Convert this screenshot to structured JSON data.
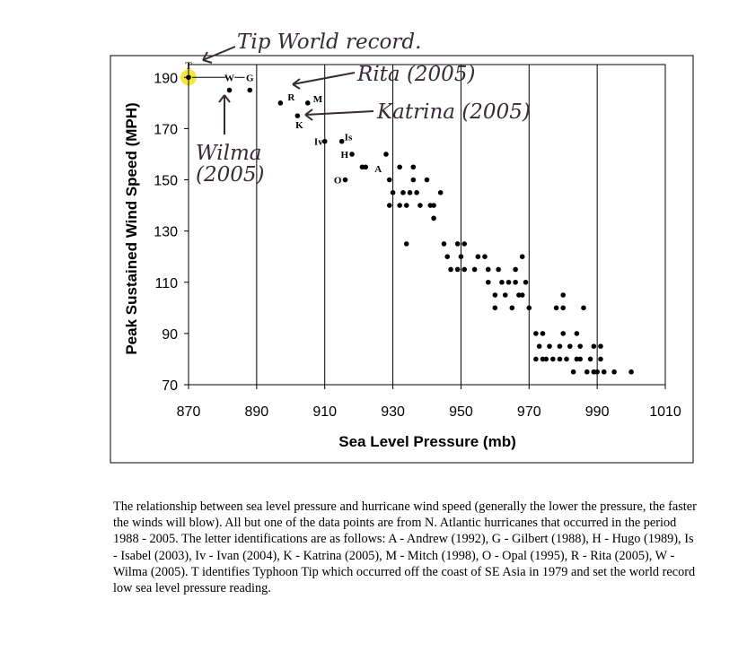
{
  "chart_data": {
    "type": "scatter",
    "xlabel": "Sea Level Pressure (mb)",
    "ylabel": "Peak Sustained Wind Speed (MPH)",
    "xlim": [
      870,
      1010
    ],
    "ylim": [
      70,
      195
    ],
    "xticks": [
      "870",
      "890",
      "910",
      "930",
      "950",
      "970",
      "990",
      "1010"
    ],
    "yticks": [
      "70",
      "90",
      "110",
      "130",
      "150",
      "170",
      "190"
    ],
    "grid": "vertical",
    "labeled_points": [
      {
        "label": "T",
        "x": 870,
        "y": 190
      },
      {
        "label": "W",
        "x": 882,
        "y": 185
      },
      {
        "label": "G",
        "x": 888,
        "y": 185
      },
      {
        "label": "R",
        "x": 897,
        "y": 180
      },
      {
        "label": "M",
        "x": 905,
        "y": 180
      },
      {
        "label": "K",
        "x": 902,
        "y": 175
      },
      {
        "label": "Iv",
        "x": 910,
        "y": 165
      },
      {
        "label": "Is",
        "x": 915,
        "y": 165
      },
      {
        "label": "H",
        "x": 918,
        "y": 160
      },
      {
        "label": "A",
        "x": 922,
        "y": 155
      },
      {
        "label": "O",
        "x": 916,
        "y": 150
      }
    ],
    "points": [
      [
        921,
        155
      ],
      [
        928,
        160
      ],
      [
        929,
        150
      ],
      [
        929,
        140
      ],
      [
        930,
        145
      ],
      [
        932,
        155
      ],
      [
        932,
        140
      ],
      [
        933,
        145
      ],
      [
        934,
        125
      ],
      [
        934,
        140
      ],
      [
        935,
        145
      ],
      [
        936,
        150
      ],
      [
        936,
        155
      ],
      [
        937,
        145
      ],
      [
        938,
        140
      ],
      [
        940,
        150
      ],
      [
        941,
        140
      ],
      [
        942,
        135
      ],
      [
        942,
        140
      ],
      [
        944,
        145
      ],
      [
        945,
        125
      ],
      [
        946,
        120
      ],
      [
        947,
        115
      ],
      [
        949,
        125
      ],
      [
        949,
        115
      ],
      [
        950,
        120
      ],
      [
        951,
        115
      ],
      [
        951,
        125
      ],
      [
        954,
        115
      ],
      [
        955,
        120
      ],
      [
        957,
        120
      ],
      [
        958,
        110
      ],
      [
        958,
        115
      ],
      [
        960,
        105
      ],
      [
        960,
        100
      ],
      [
        961,
        115
      ],
      [
        962,
        110
      ],
      [
        963,
        105
      ],
      [
        964,
        110
      ],
      [
        965,
        100
      ],
      [
        966,
        110
      ],
      [
        966,
        115
      ],
      [
        967,
        105
      ],
      [
        968,
        120
      ],
      [
        968,
        105
      ],
      [
        969,
        110
      ],
      [
        970,
        100
      ],
      [
        972,
        80
      ],
      [
        972,
        90
      ],
      [
        973,
        85
      ],
      [
        974,
        90
      ],
      [
        974,
        80
      ],
      [
        975,
        80
      ],
      [
        976,
        85
      ],
      [
        977,
        80
      ],
      [
        978,
        100
      ],
      [
        979,
        85
      ],
      [
        979,
        80
      ],
      [
        980,
        105
      ],
      [
        980,
        100
      ],
      [
        980,
        90
      ],
      [
        981,
        80
      ],
      [
        982,
        85
      ],
      [
        983,
        75
      ],
      [
        984,
        90
      ],
      [
        984,
        80
      ],
      [
        985,
        85
      ],
      [
        985,
        80
      ],
      [
        986,
        100
      ],
      [
        987,
        75
      ],
      [
        988,
        80
      ],
      [
        989,
        85
      ],
      [
        989,
        75
      ],
      [
        990,
        75
      ],
      [
        991,
        85
      ],
      [
        991,
        80
      ],
      [
        992,
        75
      ],
      [
        995,
        75
      ],
      [
        1000,
        75
      ]
    ]
  },
  "annotations": {
    "tip": "Tip World record.",
    "rita": "Rita (2005)",
    "katrina": "Katrina (2005)",
    "wilma_1": "Wilma",
    "wilma_2": "(2005)"
  },
  "caption": "The relationship between sea level pressure and hurricane wind speed (generally the lower the pressure, the faster the winds will blow).  All but one of the data points are from N. Atlantic hurricanes that occurred in the period 1988 - 2005.  The letter identifications are as follows: A - Andrew (1992), G - Gilbert (1988), H - Hugo (1989), Is - Isabel (2003), Iv - Ivan (2004), K - Katrina (2005), M - Mitch (1998), O - Opal (1995), R - Rita (2005), W - Wilma (2005).  T identifies Typhoon Tip which occurred off the coast of SE Asia in 1979 and set the world record low sea level pressure reading.",
  "colors": {
    "highlight": "#f6e21c",
    "ink": "#3a2a35",
    "points": "#000000"
  }
}
